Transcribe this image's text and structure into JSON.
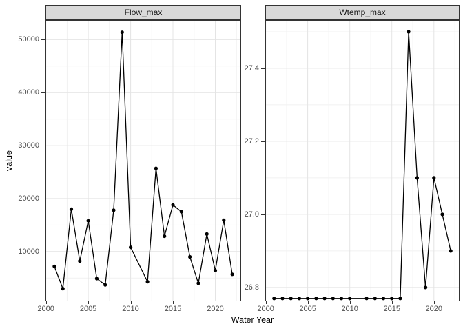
{
  "figure": {
    "y_axis_title": "value",
    "x_axis_title": "Water Year"
  },
  "colors": {
    "background": "#ffffff",
    "line": "#000000",
    "point": "#000000",
    "strip_bg": "#d9d9d9",
    "strip_border": "#333333",
    "panel_border": "#333333",
    "grid_major": "#e4e4e4",
    "grid_minor": "#f1f1f1",
    "tick_mark": "#333333",
    "tick_label": "#4d4d4d",
    "axis_title": "#000000"
  },
  "chart_data": [
    {
      "type": "line",
      "facet_label": "Flow_max",
      "xlabel": "Water Year",
      "ylabel": "value",
      "x": [
        2001,
        2002,
        2003,
        2004,
        2005,
        2006,
        2007,
        2008,
        2009,
        2010,
        2012,
        2013,
        2014,
        2015,
        2016,
        2017,
        2018,
        2019,
        2020,
        2021,
        2022
      ],
      "values": [
        7200,
        3000,
        18000,
        8200,
        15800,
        4900,
        3700,
        17800,
        51400,
        10800,
        4300,
        25700,
        12900,
        18800,
        17500,
        9000,
        4000,
        13300,
        6400,
        15900,
        5700
      ],
      "xlim": [
        1999.95,
        2023.05
      ],
      "ylim": [
        600,
        53700
      ],
      "x_ticks": [
        2000,
        2005,
        2010,
        2015,
        2020
      ],
      "x_tick_labels": [
        "2000",
        "2005",
        "2010",
        "2015",
        "2020"
      ],
      "x_ticks_minor": [
        2002.5,
        2007.5,
        2012.5,
        2017.5,
        2022.5
      ],
      "y_ticks": [
        10000,
        20000,
        30000,
        40000,
        50000
      ],
      "y_tick_labels": [
        "10000",
        "20000",
        "30000",
        "40000",
        "50000"
      ],
      "y_ticks_minor": [
        5000,
        15000,
        25000,
        35000,
        45000
      ],
      "grid": true,
      "legend": "none",
      "note_missing_year": 2011
    },
    {
      "type": "line",
      "facet_label": "Wtemp_max",
      "xlabel": "Water Year",
      "ylabel": "value",
      "x": [
        2001,
        2002,
        2003,
        2004,
        2005,
        2006,
        2007,
        2008,
        2009,
        2010,
        2012,
        2013,
        2014,
        2015,
        2016,
        2017,
        2018,
        2019,
        2020,
        2021,
        2022
      ],
      "values": [
        26.77,
        26.77,
        26.77,
        26.77,
        26.77,
        26.77,
        26.77,
        26.77,
        26.77,
        26.77,
        26.77,
        26.77,
        26.77,
        26.77,
        26.77,
        27.5,
        27.1,
        26.8,
        27.1,
        27.0,
        26.9
      ],
      "xlim": [
        1999.95,
        2023.05
      ],
      "ylim": [
        26.762,
        27.532
      ],
      "x_ticks": [
        2000,
        2005,
        2010,
        2015,
        2020
      ],
      "x_tick_labels": [
        "2000",
        "2005",
        "2010",
        "2015",
        "2020"
      ],
      "x_ticks_minor": [
        2002.5,
        2007.5,
        2012.5,
        2017.5,
        2022.5
      ],
      "y_ticks": [
        26.8,
        27.0,
        27.2,
        27.4
      ],
      "y_tick_labels": [
        "26.8",
        "27.0",
        "27.2",
        "27.4"
      ],
      "y_ticks_minor": [
        26.9,
        27.1,
        27.3,
        27.5
      ],
      "grid": true,
      "legend": "none",
      "note_missing_year": 2011
    }
  ]
}
